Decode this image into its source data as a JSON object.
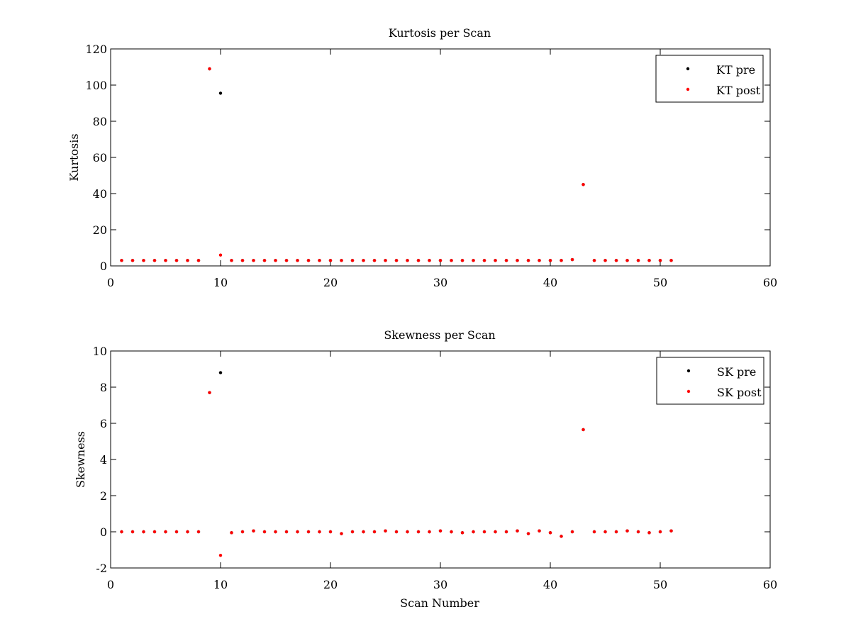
{
  "figure": {
    "background": "#ffffff"
  },
  "chart_data": [
    {
      "type": "scatter",
      "title": "Kurtosis per Scan",
      "xlabel": "",
      "ylabel": "Kurtosis",
      "xlim": [
        0,
        60
      ],
      "ylim": [
        0,
        120
      ],
      "xticks": [
        0,
        10,
        20,
        30,
        40,
        50,
        60
      ],
      "yticks": [
        0,
        20,
        40,
        60,
        80,
        100,
        120
      ],
      "x_tick_labels": [
        "0",
        "10",
        "20",
        "30",
        "40",
        "50",
        "60"
      ],
      "y_tick_labels": [
        "0",
        "20",
        "40",
        "60",
        "80",
        "100",
        "120"
      ],
      "grid": false,
      "legend_position": "top-right",
      "series": [
        {
          "name": "KT pre",
          "color": "#000000",
          "marker": "dot",
          "x": [
            1,
            2,
            3,
            4,
            5,
            6,
            7,
            8,
            9,
            10,
            11,
            12,
            13,
            14,
            15,
            16,
            17,
            18,
            19,
            20,
            21,
            22,
            23,
            24,
            25,
            26,
            27,
            28,
            29,
            30,
            31,
            32,
            33,
            34,
            35,
            36,
            37,
            38,
            39,
            40,
            41,
            42,
            43,
            44,
            45,
            46,
            47,
            48,
            49,
            50,
            51
          ],
          "y": [
            3,
            3,
            3,
            3,
            3,
            3,
            3,
            3,
            109,
            95.5,
            3,
            3,
            3,
            3,
            3,
            3,
            3,
            3,
            3,
            3,
            3,
            3,
            3,
            3,
            3,
            3,
            3,
            3,
            3,
            3,
            3,
            3,
            3,
            3,
            3,
            3,
            3,
            3,
            3,
            3,
            3,
            3.5,
            45,
            3,
            3,
            3,
            3,
            3,
            3,
            3,
            3
          ]
        },
        {
          "name": "KT post",
          "color": "#ff0000",
          "marker": "dot",
          "x": [
            1,
            2,
            3,
            4,
            5,
            6,
            7,
            8,
            9,
            10,
            11,
            12,
            13,
            14,
            15,
            16,
            17,
            18,
            19,
            20,
            21,
            22,
            23,
            24,
            25,
            26,
            27,
            28,
            29,
            30,
            31,
            32,
            33,
            34,
            35,
            36,
            37,
            38,
            39,
            40,
            41,
            42,
            43,
            44,
            45,
            46,
            47,
            48,
            49,
            50,
            51
          ],
          "y": [
            3,
            3,
            3,
            3,
            3,
            3,
            3,
            3,
            109,
            6,
            3,
            3,
            3,
            3,
            3,
            3,
            3,
            3,
            3,
            3,
            3,
            3,
            3,
            3,
            3,
            3,
            3,
            3,
            3,
            3,
            3,
            3,
            3,
            3,
            3,
            3,
            3,
            3,
            3,
            3,
            3,
            3.5,
            45,
            3,
            3,
            3,
            3,
            3,
            3,
            3,
            3
          ]
        }
      ]
    },
    {
      "type": "scatter",
      "title": "Skewness per Scan",
      "xlabel": "Scan Number",
      "ylabel": "Skewness",
      "xlim": [
        0,
        60
      ],
      "ylim": [
        -2,
        10
      ],
      "xticks": [
        0,
        10,
        20,
        30,
        40,
        50,
        60
      ],
      "yticks": [
        -2,
        0,
        2,
        4,
        6,
        8,
        10
      ],
      "x_tick_labels": [
        "0",
        "10",
        "20",
        "30",
        "40",
        "50",
        "60"
      ],
      "y_tick_labels": [
        "-2",
        "0",
        "2",
        "4",
        "6",
        "8",
        "10"
      ],
      "grid": false,
      "legend_position": "top-right",
      "series": [
        {
          "name": "SK pre",
          "color": "#000000",
          "marker": "dot",
          "x": [
            1,
            2,
            3,
            4,
            5,
            6,
            7,
            8,
            9,
            10,
            11,
            12,
            13,
            14,
            15,
            16,
            17,
            18,
            19,
            20,
            21,
            22,
            23,
            24,
            25,
            26,
            27,
            28,
            29,
            30,
            31,
            32,
            33,
            34,
            35,
            36,
            37,
            38,
            39,
            40,
            41,
            42,
            43,
            44,
            45,
            46,
            47,
            48,
            49,
            50,
            51
          ],
          "y": [
            0,
            0,
            0,
            0,
            0,
            0,
            0,
            0,
            7.7,
            8.8,
            -0.05,
            0,
            0.05,
            0,
            0,
            0,
            0,
            0,
            0,
            0,
            -0.1,
            0,
            0,
            0,
            0.05,
            0,
            0,
            0,
            0,
            0.05,
            0,
            -0.05,
            0,
            0,
            0,
            0,
            0.05,
            -0.1,
            0.05,
            -0.05,
            -0.25,
            0,
            5.65,
            0,
            0,
            0,
            0.05,
            0,
            -0.05,
            0,
            0.05
          ]
        },
        {
          "name": "SK post",
          "color": "#ff0000",
          "marker": "dot",
          "x": [
            1,
            2,
            3,
            4,
            5,
            6,
            7,
            8,
            9,
            10,
            11,
            12,
            13,
            14,
            15,
            16,
            17,
            18,
            19,
            20,
            21,
            22,
            23,
            24,
            25,
            26,
            27,
            28,
            29,
            30,
            31,
            32,
            33,
            34,
            35,
            36,
            37,
            38,
            39,
            40,
            41,
            42,
            43,
            44,
            45,
            46,
            47,
            48,
            49,
            50,
            51
          ],
          "y": [
            0,
            0,
            0,
            0,
            0,
            0,
            0,
            0,
            7.7,
            -1.3,
            -0.05,
            0,
            0.05,
            0,
            0,
            0,
            0,
            0,
            0,
            0,
            -0.1,
            0,
            0,
            0,
            0.05,
            0,
            0,
            0,
            0,
            0.05,
            0,
            -0.05,
            0,
            0,
            0,
            0,
            0.05,
            -0.1,
            0.05,
            -0.05,
            -0.25,
            0,
            5.65,
            0,
            0,
            0,
            0.05,
            0,
            -0.05,
            0,
            0.05
          ]
        }
      ]
    }
  ]
}
